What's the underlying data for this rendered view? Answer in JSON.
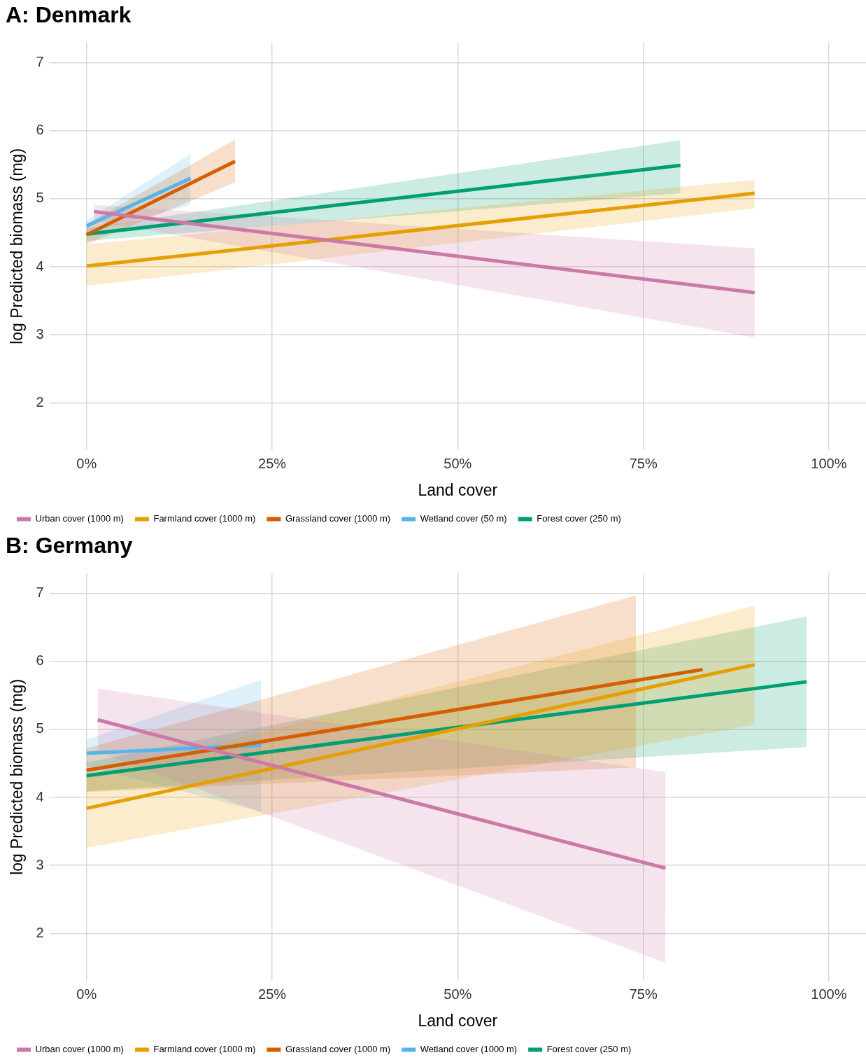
{
  "chart_data": [
    {
      "type": "line",
      "title": "A: Denmark",
      "xlabel": "Land cover",
      "ylabel": "log Predicted biomass (mg)",
      "xlim": [
        -5,
        105
      ],
      "ylim": [
        1.3,
        7.3
      ],
      "xticks": [
        {
          "value": 0,
          "label": "0%"
        },
        {
          "value": 25,
          "label": "25%"
        },
        {
          "value": 50,
          "label": "50%"
        },
        {
          "value": 75,
          "label": "75%"
        },
        {
          "value": 100,
          "label": "100%"
        }
      ],
      "yticks": [
        2,
        3,
        4,
        5,
        6,
        7
      ],
      "grid": true,
      "legend": "bottom",
      "marker": "none",
      "line_style": "solid",
      "series": [
        {
          "name": "Urban cover (1000 m)",
          "color": "#cc79a7",
          "x": [
            1,
            90
          ],
          "values": [
            4.81,
            3.62
          ],
          "lower": [
            4.68,
            2.96
          ],
          "upper": [
            4.91,
            4.27
          ]
        },
        {
          "name": "Farmland cover (1000 m)",
          "color": "#e69f00",
          "x": [
            0,
            90
          ],
          "values": [
            4.01,
            5.08
          ],
          "lower": [
            3.72,
            4.86
          ],
          "upper": [
            4.33,
            5.28
          ]
        },
        {
          "name": "Grassland cover (1000 m)",
          "color": "#d55e00",
          "x": [
            0,
            20
          ],
          "values": [
            4.47,
            5.55
          ],
          "lower": [
            4.33,
            5.24
          ],
          "upper": [
            4.63,
            5.87
          ]
        },
        {
          "name": "Wetland cover (50 m)",
          "color": "#56b4e9",
          "x": [
            0,
            14
          ],
          "values": [
            4.6,
            5.3
          ],
          "lower": [
            4.49,
            4.91
          ],
          "upper": [
            4.68,
            5.66
          ]
        },
        {
          "name": "Forest cover (250 m)",
          "color": "#009e73",
          "x": [
            0,
            80
          ],
          "values": [
            4.48,
            5.49
          ],
          "lower": [
            4.38,
            5.08
          ],
          "upper": [
            4.57,
            5.86
          ]
        }
      ]
    },
    {
      "type": "line",
      "title": "B: Germany",
      "xlabel": "Land cover",
      "ylabel": "log Predicted biomass (mg)",
      "xlim": [
        -5,
        105
      ],
      "ylim": [
        1.3,
        7.3
      ],
      "xticks": [
        {
          "value": 0,
          "label": "0%"
        },
        {
          "value": 25,
          "label": "25%"
        },
        {
          "value": 50,
          "label": "50%"
        },
        {
          "value": 75,
          "label": "75%"
        },
        {
          "value": 100,
          "label": "100%"
        }
      ],
      "yticks": [
        2,
        3,
        4,
        5,
        6,
        7
      ],
      "grid": true,
      "legend": "bottom",
      "marker": "none",
      "line_style": "solid",
      "series": [
        {
          "name": "Urban cover (1000 m)",
          "color": "#cc79a7",
          "x": [
            1.5,
            78
          ],
          "values": [
            5.14,
            2.96
          ],
          "lower": [
            4.67,
            1.57
          ],
          "upper": [
            5.6,
            4.37
          ]
        },
        {
          "name": "Farmland cover (1000 m)",
          "color": "#e69f00",
          "x": [
            0,
            90
          ],
          "values": [
            3.84,
            5.95
          ],
          "lower": [
            3.26,
            5.07
          ],
          "upper": [
            4.3,
            6.82
          ]
        },
        {
          "name": "Grassland cover (1000 m)",
          "color": "#d55e00",
          "x": [
            0,
            74,
            83
          ],
          "values": [
            4.4,
            5.72,
            5.88
          ],
          "lower": [
            4.08,
            4.44,
            null
          ],
          "upper": [
            4.72,
            6.97,
            null
          ]
        },
        {
          "name": "Wetland cover (1000 m)",
          "color": "#56b4e9",
          "x": [
            0,
            23.5
          ],
          "values": [
            4.65,
            4.77
          ],
          "lower": [
            4.46,
            3.79
          ],
          "upper": [
            4.85,
            5.73
          ]
        },
        {
          "name": "Forest cover (250 m)",
          "color": "#009e73",
          "x": [
            0,
            97
          ],
          "values": [
            4.32,
            5.7
          ],
          "lower": [
            4.09,
            4.74
          ],
          "upper": [
            4.51,
            6.66
          ]
        }
      ]
    }
  ]
}
